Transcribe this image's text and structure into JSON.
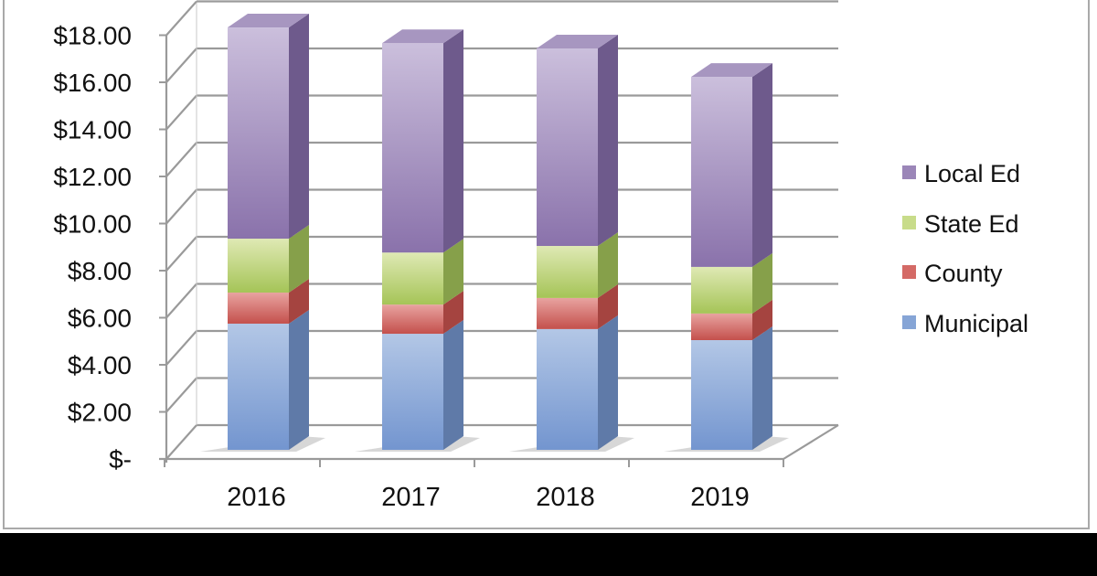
{
  "chart_data": {
    "type": "bar",
    "subtype": "stacked-3d-column",
    "title": "",
    "xlabel": "",
    "ylabel": "",
    "categories": [
      "2016",
      "2017",
      "2018",
      "2019"
    ],
    "series": [
      {
        "name": "Municipal",
        "color": "#7f9fd4",
        "values": [
          5.36,
          4.93,
          5.13,
          4.66
        ]
      },
      {
        "name": "County",
        "color": "#d46a66",
        "values": [
          1.32,
          1.24,
          1.32,
          1.13
        ]
      },
      {
        "name": "State Ed",
        "color": "#bcd27a",
        "values": [
          2.29,
          2.21,
          2.21,
          1.98
        ]
      },
      {
        "name": "Local Ed",
        "color": "#9b86b8",
        "values": [
          8.97,
          8.89,
          8.39,
          8.07
        ]
      }
    ],
    "totals": [
      17.94,
      17.28,
      17.05,
      15.84
    ],
    "ylim": [
      0,
      18
    ],
    "yticks": [
      "$-",
      "$2.00",
      "$4.00",
      "$6.00",
      "$8.00",
      "$10.00",
      "$12.00",
      "$14.00",
      "$16.00",
      "$18.00"
    ],
    "grid": true,
    "legend_position": "right",
    "legend_order": [
      "Local Ed",
      "State Ed",
      "County",
      "Municipal"
    ]
  }
}
